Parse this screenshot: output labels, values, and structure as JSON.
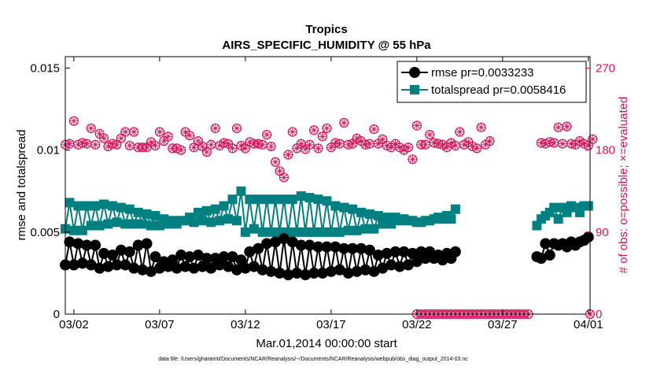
{
  "chart_data": {
    "type": "line",
    "title": "Tropics",
    "subtitle": "AIRS_SPECIFIC_HUMIDITY @ 55 hPa",
    "xlabel": "Mar.01,2014 00:00:00 start",
    "ylabel": "rmse and totalspread",
    "ylabel_right": "# of obs: o=possible; ×=evaluated",
    "xlim": [
      1.5,
      32.1
    ],
    "ylim": [
      0,
      0.0157
    ],
    "ylim_right": [
      0,
      282.6
    ],
    "x_tick_values": [
      2,
      7,
      12,
      17,
      22,
      27,
      32
    ],
    "x_tick_labels": [
      "03/02",
      "03/07",
      "03/12",
      "03/17",
      "03/22",
      "03/27",
      "04/01"
    ],
    "y_tick_values": [
      0,
      0.005,
      0.01,
      0.015
    ],
    "y_tick_labels": [
      "0",
      "0.005",
      "0.01",
      "0.015"
    ],
    "y_right_tick_values": [
      0,
      90,
      180,
      270
    ],
    "y_right_tick_labels": [
      "0",
      "90",
      "180",
      "270"
    ],
    "footnote": "data file: /Users/gharamti/Documents/NCAR/Reanalysis/~/Documents/NCAR/Reanalysis/webpub/obs_diag_output_2014-03.nc",
    "legend_position": "top-right",
    "series": [
      {
        "name": "rmse pr=0.0033233",
        "axis": "left",
        "color": "#000000",
        "marker": "circle",
        "segments": [
          {
            "x_start": 1.5,
            "x_step": 0.25,
            "values": [
              0.003,
              0.0044,
              0.003,
              0.0043,
              0.0031,
              0.0042,
              0.003,
              0.0042,
              0.0028,
              0.0037,
              0.0029,
              0.0036,
              0.003,
              0.0039,
              0.003,
              0.0038,
              0.0028,
              0.0042,
              0.0027,
              0.0043,
              0.0026,
              0.0035,
              0.0028,
              0.0032,
              0.0029,
              0.0033,
              0.0028,
              0.0036,
              0.0029,
              0.0035,
              0.0028,
              0.0036,
              0.0029,
              0.0034,
              0.0028,
              0.0034,
              0.003,
              0.0035,
              0.0029,
              0.0035,
              0.0027,
              0.0033,
              0.0028,
              0.0038,
              0.0029,
              0.004,
              0.0027,
              0.0043,
              0.0026,
              0.0044,
              0.0025,
              0.0046,
              0.0024,
              0.0044,
              0.0025,
              0.0042,
              0.0024,
              0.0042,
              0.0025,
              0.0041,
              0.0025,
              0.0041,
              0.0026,
              0.0041,
              0.0027,
              0.004,
              0.0025,
              0.004,
              0.0026,
              0.004,
              0.0027,
              0.0039,
              0.0026,
              0.0036,
              0.0028,
              0.0037,
              0.003,
              0.0038,
              0.0029,
              0.0038,
              0.003,
              0.0037,
              0.0032,
              0.0038,
              0.0034,
              0.0038,
              0.0034,
              0.0036,
              0.0033,
              0.0037,
              0.0034,
              0.0038
            ]
          },
          {
            "x_start": 29.0,
            "x_step": 0.25,
            "values": [
              0.0035,
              0.0034,
              0.0043,
              0.0036,
              0.0043,
              0.0042,
              0.0043,
              0.0041,
              0.0044,
              0.0042,
              0.0044,
              0.0045,
              0.0047
            ]
          }
        ]
      },
      {
        "name": "totalspread pr=0.0058416",
        "axis": "left",
        "color": "#008080",
        "marker": "square",
        "segments": [
          {
            "x_start": 1.5,
            "x_step": 0.25,
            "values": [
              0.0052,
              0.0068,
              0.0051,
              0.0066,
              0.0051,
              0.0066,
              0.0054,
              0.0066,
              0.0054,
              0.0067,
              0.0055,
              0.0066,
              0.0056,
              0.0065,
              0.0055,
              0.0064,
              0.0055,
              0.0062,
              0.0055,
              0.0061,
              0.0054,
              0.006,
              0.0054,
              0.0058,
              0.0055,
              0.0057,
              0.0055,
              0.0057,
              0.0057,
              0.0059,
              0.0056,
              0.0062,
              0.0057,
              0.0063,
              0.0056,
              0.0064,
              0.0057,
              0.0066,
              0.0058,
              0.007,
              0.0057,
              0.0075,
              0.005,
              0.007,
              0.0052,
              0.007,
              0.005,
              0.007,
              0.005,
              0.007,
              0.005,
              0.007,
              0.005,
              0.007,
              0.005,
              0.0072,
              0.005,
              0.0071,
              0.005,
              0.007,
              0.005,
              0.0069,
              0.005,
              0.0066,
              0.005,
              0.0065,
              0.0051,
              0.0064,
              0.0051,
              0.0062,
              0.0052,
              0.0061,
              0.0052,
              0.006,
              0.0055,
              0.0059,
              0.0055,
              0.0059,
              0.0057,
              0.0058,
              0.0057,
              0.0057,
              0.0056,
              0.0056,
              0.0057,
              0.0057,
              0.0058,
              0.0059,
              0.0058,
              0.006,
              0.0058,
              0.0064
            ]
          },
          {
            "x_start": 29.0,
            "x_step": 0.25,
            "values": [
              0.0054,
              0.0058,
              0.006,
              0.0062,
              0.0065,
              0.0058,
              0.0065,
              0.0062,
              0.0066,
              0.0065,
              0.0062,
              0.0066,
              0.0066
            ]
          }
        ]
      },
      {
        "name": "# of obs possible",
        "axis": "right",
        "color": "#d4145a",
        "marker": "circle-open",
        "segments": [
          {
            "x_start": 1.5,
            "x_step": 0.25,
            "values": [
              186,
              187,
              212,
              186,
              188,
              187,
              204,
              186,
              198,
              193,
              184,
              187,
              186,
              193,
              200,
              185,
              200,
              183,
              183,
              183,
              189,
              185,
              200,
              190,
              195,
              182,
              182,
              180,
              200,
              196,
              183,
              190,
              184,
              178,
              186,
              204,
              185,
              188,
              187,
              182,
              204,
              185,
              182,
              189,
              187,
              187,
              186,
              197,
              184,
              167,
              157,
              150,
              175,
              200,
              182,
              187,
              181,
              186,
              202,
              182,
              195,
              204,
              183,
              188,
              187,
              210,
              186,
              187,
              193,
              190,
              186,
              187,
              203,
              187,
              192,
              185,
              183,
              187,
              183,
              180,
              183,
              170,
              207,
              186,
              186,
              197,
              188,
              187,
              186,
              183,
              188,
              185,
              200,
              186,
              189,
              184,
              182,
              205,
              186,
              190
            ]
          },
          {
            "x_start": 22.0,
            "x_step": 0.25,
            "values": [
              0,
              0,
              0,
              0,
              0,
              0,
              0,
              0,
              0,
              0,
              0,
              0,
              0,
              0,
              0,
              0,
              0,
              0,
              0,
              0,
              0,
              0,
              0,
              0,
              0,
              0,
              0
            ]
          },
          {
            "x_start": 29.25,
            "x_step": 0.25,
            "values": [
              188,
              187,
              189,
              188,
              205,
              187,
              206,
              187,
              186,
              190,
              187,
              185,
              192,
              205
            ]
          },
          {
            "x_start": 32.1,
            "x_step": 0.25,
            "values": [
              0
            ]
          }
        ]
      }
    ]
  }
}
